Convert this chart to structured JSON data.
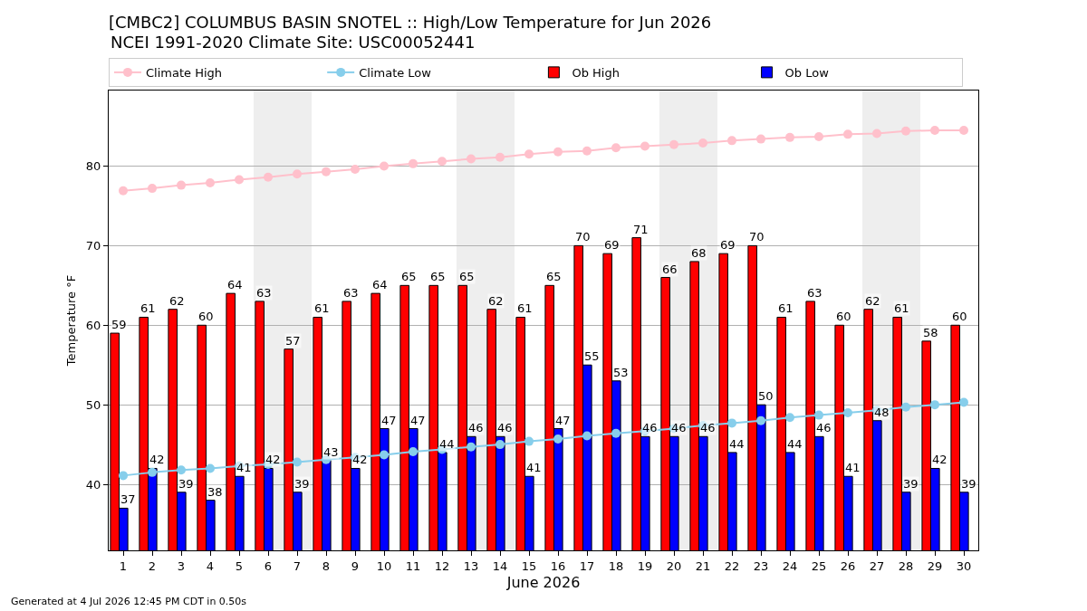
{
  "chart_data": {
    "type": "bar",
    "title": "[CMBC2] COLUMBUS BASIN SNOTEL :: High/Low Temperature for Jun 2026",
    "subtitle": "NCEI 1991-2020 Climate Site: USC00052441",
    "xlabel": "June 2026",
    "ylabel": "Temperature °F",
    "annotations": [
      "Generated at 4 Jul 2026 12:45 PM CDT in 0.50s"
    ],
    "x": [
      1,
      2,
      3,
      4,
      5,
      6,
      7,
      8,
      9,
      10,
      11,
      12,
      13,
      14,
      15,
      16,
      17,
      18,
      19,
      20,
      21,
      22,
      23,
      24,
      25,
      26,
      27,
      28,
      29,
      30
    ],
    "xlim": [
      0.5,
      30.5
    ],
    "xticks": [
      1,
      2,
      3,
      4,
      5,
      6,
      7,
      8,
      9,
      10,
      11,
      12,
      13,
      14,
      15,
      16,
      17,
      18,
      19,
      20,
      21,
      22,
      23,
      24,
      25,
      26,
      27,
      28,
      29,
      30
    ],
    "ylim": [
      31.7,
      89.5
    ],
    "yticks": [
      40,
      50,
      60,
      70,
      80
    ],
    "grid": "y",
    "legend": "top",
    "marker": "circle",
    "bands": [
      {
        "axis": "x",
        "from": 5.5,
        "to": 7.5,
        "color": "#eeeeee"
      },
      {
        "axis": "x",
        "from": 12.5,
        "to": 14.5,
        "color": "#eeeeee"
      },
      {
        "axis": "x",
        "from": 19.5,
        "to": 21.5,
        "color": "#eeeeee"
      },
      {
        "axis": "x",
        "from": 26.5,
        "to": 28.5,
        "color": "#eeeeee"
      }
    ],
    "series": [
      {
        "name": "Climate High",
        "type": "line",
        "color": "#ffc0cb",
        "values": [
          76.9,
          77.2,
          77.6,
          77.9,
          78.3,
          78.6,
          79.0,
          79.3,
          79.6,
          80.0,
          80.3,
          80.6,
          80.9,
          81.1,
          81.5,
          81.8,
          81.9,
          82.3,
          82.5,
          82.7,
          82.9,
          83.2,
          83.4,
          83.6,
          83.7,
          84.0,
          84.1,
          84.4,
          84.5,
          84.5
        ]
      },
      {
        "name": "Climate Low",
        "type": "line",
        "color": "#87ceeb",
        "values": [
          41.1,
          41.5,
          41.8,
          42.0,
          42.3,
          42.5,
          42.8,
          43.1,
          43.4,
          43.7,
          44.1,
          44.4,
          44.7,
          45.0,
          45.4,
          45.7,
          46.1,
          46.4,
          46.7,
          47.0,
          47.4,
          47.7,
          48.0,
          48.4,
          48.7,
          49.0,
          49.3,
          49.7,
          50.0,
          50.3
        ]
      },
      {
        "name": "Ob High",
        "color": "#ff0000",
        "values": [
          59,
          61,
          62,
          60,
          64,
          63,
          57,
          61,
          63,
          64,
          65,
          65,
          65,
          62,
          61,
          65,
          70,
          69,
          71,
          66,
          68,
          69,
          70,
          61,
          63,
          60,
          62,
          61,
          58,
          60
        ],
        "value_labels": [
          "59",
          "61",
          "62",
          "60",
          "64",
          "63",
          "57",
          "61",
          "63",
          "64",
          "65",
          "65",
          "65",
          "62",
          "61",
          "65",
          "70",
          "69",
          "71",
          "66",
          "68",
          "69",
          "70",
          "61",
          "63",
          "60",
          "62",
          "61",
          "58",
          "60"
        ]
      },
      {
        "name": "Ob Low",
        "color": "#0000ff",
        "values": [
          37,
          42,
          39,
          38,
          41,
          42,
          39,
          43,
          42,
          47,
          47,
          44,
          46,
          46,
          41,
          47,
          55,
          53,
          46,
          46,
          46,
          44,
          50,
          44,
          46,
          41,
          48,
          39,
          42,
          39
        ],
        "value_labels": [
          "37",
          "42",
          "39",
          "38",
          "41",
          "42",
          "39",
          "43",
          "42",
          "47",
          "47",
          "44",
          "46",
          "46",
          "41",
          "47",
          "55",
          "53",
          "46",
          "46",
          "46",
          "44",
          "50",
          "44",
          "46",
          "41",
          "48",
          "39",
          "42",
          "39"
        ]
      }
    ]
  }
}
